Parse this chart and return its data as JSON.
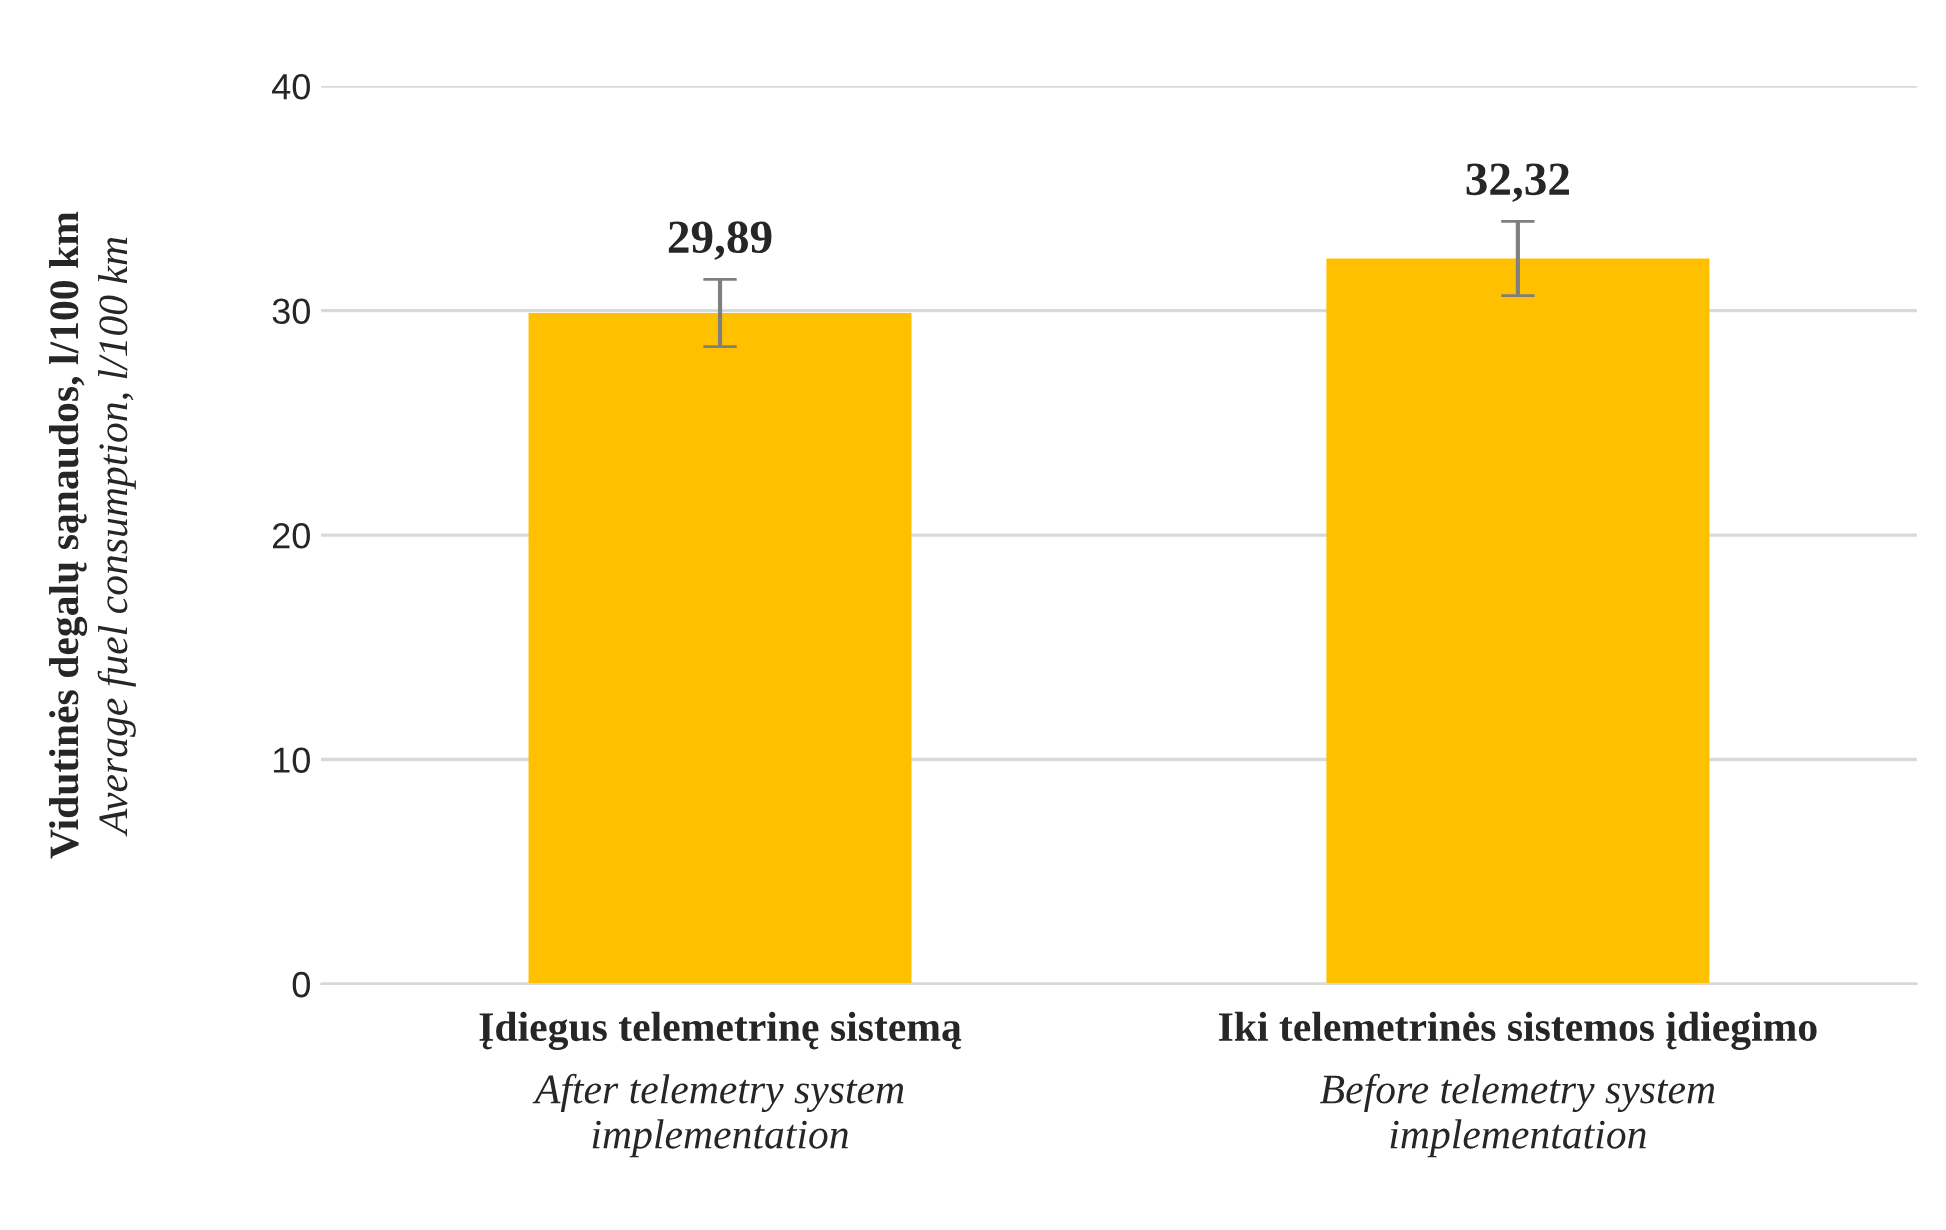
{
  "chart_data": {
    "type": "bar",
    "categories": [
      "Įdiegus telemetrinę sistemą\nAfter telemetry system\nimplementation",
      "Iki telemetrinės sistemos įdiegimo\nBefore telemetry system\nimplementation"
    ],
    "values": [
      29.89,
      32.32
    ],
    "errors": [
      1.5,
      1.65
    ],
    "color": "#ffc000",
    "value_labels": [
      "29,89",
      "32,32"
    ],
    "ylabel": "Vidutinės degalų sąnaudos, l/100 km\nAverage fuel consumption, l/100 km",
    "ylim": [
      0,
      40
    ],
    "yticks": [
      0,
      10,
      20,
      30,
      40
    ],
    "grid": "y"
  }
}
